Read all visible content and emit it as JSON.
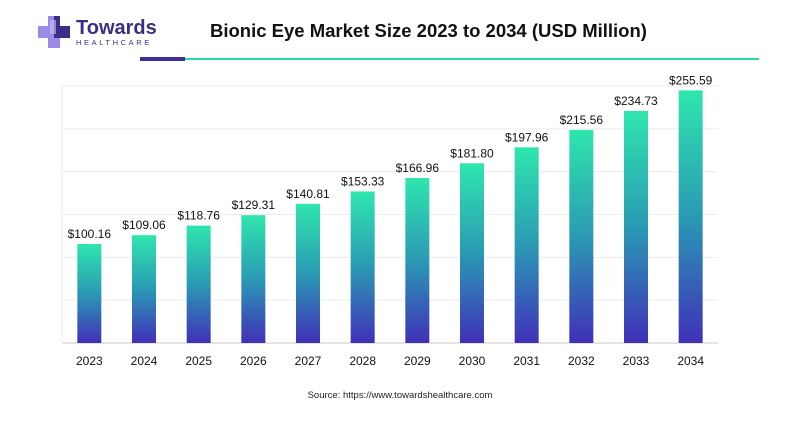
{
  "brand": {
    "name": "Towards",
    "sub": "HEALTHCARE",
    "colors": {
      "primary": "#3a2f86",
      "accent": "#2fd6ac",
      "cross_light": "#9b8be6"
    }
  },
  "header": {
    "title": "Bionic Eye Market Size 2023 to 2034 (USD Million)"
  },
  "source": "Source: https://www.towardshealthcare.com",
  "chart_data": {
    "type": "bar",
    "title": "Bionic Eye Market Size 2023 to 2034 (USD Million)",
    "categories": [
      "2023",
      "2024",
      "2025",
      "2026",
      "2027",
      "2028",
      "2029",
      "2030",
      "2031",
      "2032",
      "2033",
      "2034"
    ],
    "values": [
      100.16,
      109.06,
      118.76,
      129.31,
      140.81,
      153.33,
      166.96,
      181.8,
      197.96,
      215.56,
      234.73,
      255.59
    ],
    "value_labels": [
      "$100.16",
      "$109.06",
      "$118.76",
      "$129.31",
      "$140.81",
      "$153.33",
      "$166.96",
      "$181.80",
      "$197.96",
      "$215.56",
      "$234.73",
      "$255.59"
    ],
    "xlabel": "",
    "ylabel": "",
    "ylim": [
      0,
      260
    ],
    "grid": true,
    "gradient": {
      "top": "#2fe6ae",
      "middle": "#2a9ab4",
      "bottom": "#4030b8"
    }
  }
}
